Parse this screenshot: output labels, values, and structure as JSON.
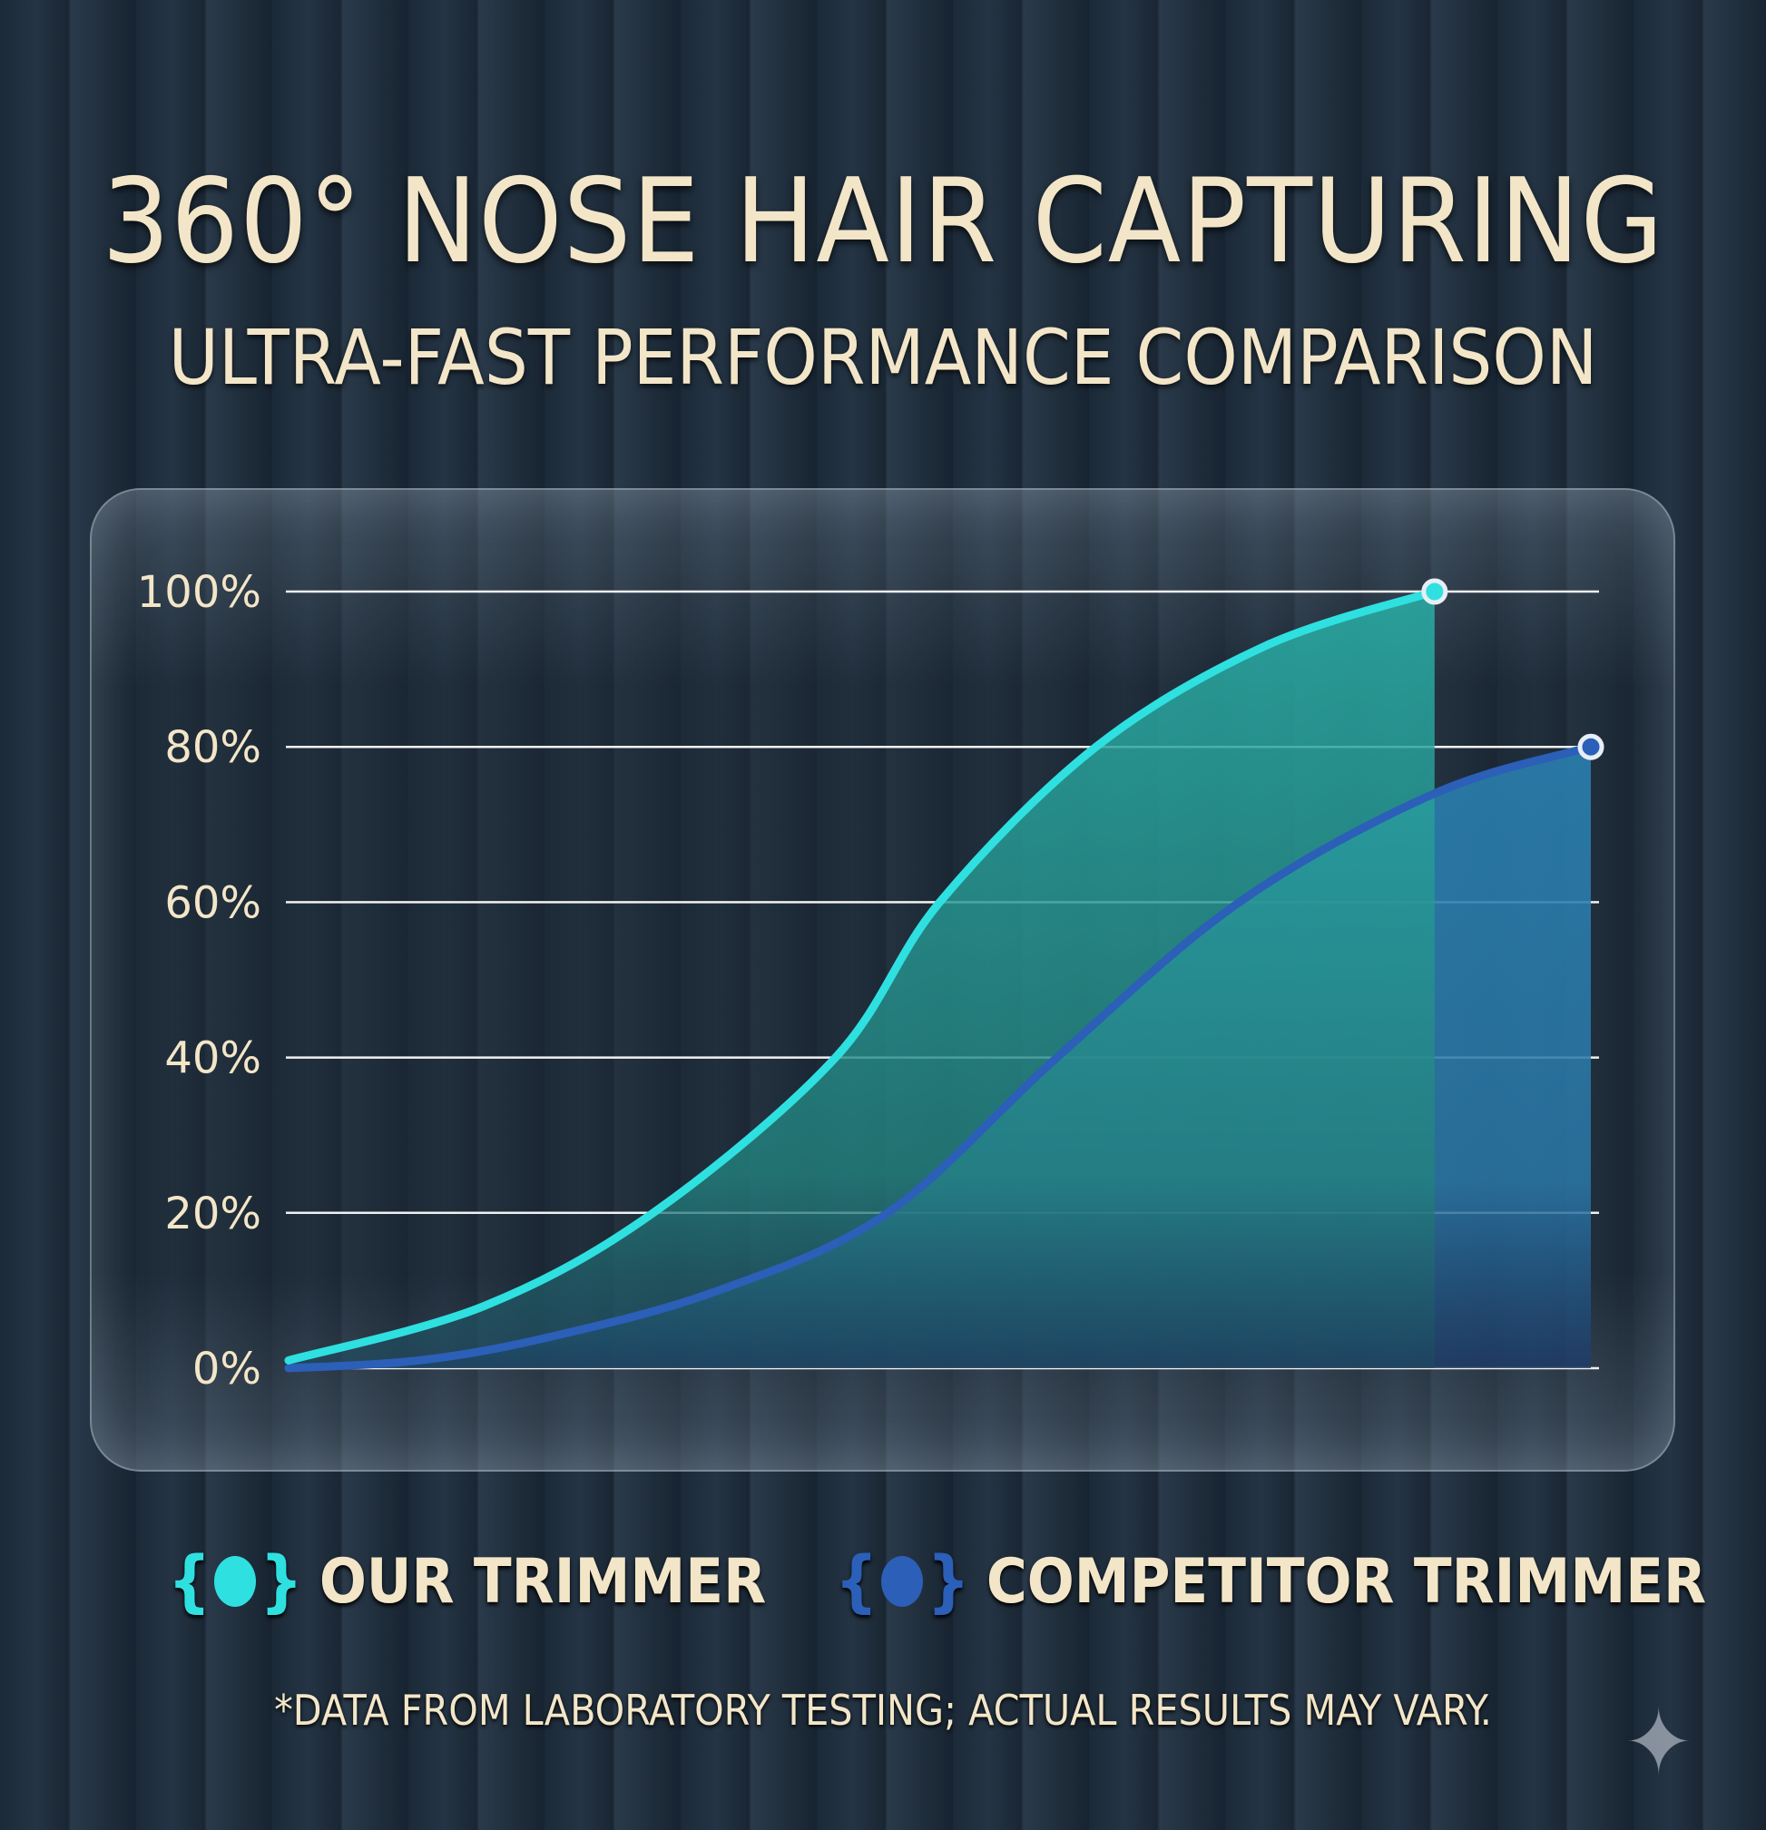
{
  "header": {
    "title": "360° NOSE HAIR CAPTURING",
    "subtitle": "ULTRA-FAST PERFORMANCE COMPARISON"
  },
  "chart_data": {
    "type": "area",
    "title": "",
    "xlabel": "",
    "ylabel": "",
    "ylim": [
      0,
      100
    ],
    "xlim": [
      0,
      100
    ],
    "y_ticks": [
      "0%",
      "20%",
      "40%",
      "60%",
      "80%",
      "100%"
    ],
    "grid": true,
    "legend_position": "bottom",
    "series": [
      {
        "name": "OUR TRIMMER",
        "color": "#2fe0e0",
        "x": [
          0,
          15,
          28,
          42,
          50,
          62,
          75,
          88
        ],
        "values": [
          1,
          8,
          20,
          40,
          60,
          80,
          93,
          100
        ]
      },
      {
        "name": "COMPETITOR TRIMMER",
        "color": "#2b5fb8",
        "x": [
          0,
          10,
          20,
          33,
          46,
          59,
          73,
          88,
          100
        ],
        "values": [
          0,
          1,
          4,
          10,
          20,
          40,
          60,
          74,
          80
        ]
      }
    ]
  },
  "legend": {
    "items": [
      {
        "label": "OUR TRIMMER",
        "color": "#2fe0e0"
      },
      {
        "label": "COMPETITOR TRIMMER",
        "color": "#2b5fb8"
      }
    ]
  },
  "footnote": "*DATA FROM LABORATORY TESTING; ACTUAL RESULTS MAY VARY.",
  "watermark_icon": "sparkle-icon"
}
